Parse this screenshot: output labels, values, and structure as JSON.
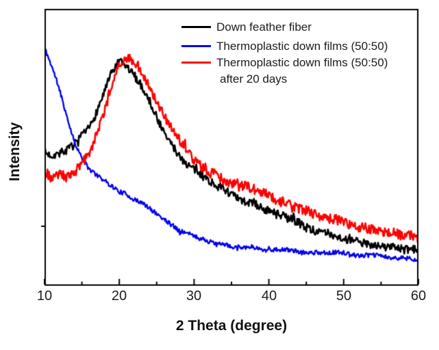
{
  "figure": {
    "background": "#ffffff",
    "x_axis_label": "2 Theta (degree)",
    "y_axis_label": "Intensity",
    "x_tick_labels": [
      "10",
      "20",
      "30",
      "40",
      "50",
      "60"
    ]
  },
  "legend": {
    "items": [
      {
        "label": "Down feather fiber",
        "color": "#000000"
      },
      {
        "label": "Thermoplastic down films (50:50)",
        "color": "#0000ee"
      },
      {
        "label": "Thermoplastic down films (50:50)",
        "label_line2": "after 20 days",
        "color": "#ff0000"
      }
    ]
  },
  "chart_data": {
    "type": "line",
    "title": "",
    "xlabel": "2 Theta (degree)",
    "ylabel": "Intensity",
    "xlim": [
      10,
      60
    ],
    "ylim": [
      0,
      100
    ],
    "x_ticks": [
      10,
      20,
      30,
      40,
      50,
      60
    ],
    "x_minor_ticks": [
      15,
      25,
      35,
      45,
      55
    ],
    "y_ticks": [],
    "y_units": "arbitrary units (no scale shown)",
    "grid": false,
    "legend_position": "inside top-right",
    "x_start": 10,
    "x_step": 1,
    "series": [
      {
        "name": "Down feather fiber",
        "color": "#000000",
        "noise_amp": 1.5,
        "values": [
          48,
          47,
          48,
          49,
          51,
          54,
          57,
          63,
          70,
          77,
          81,
          79,
          76,
          72,
          67,
          61,
          55,
          51,
          47,
          44,
          42,
          40,
          38,
          36,
          35,
          33,
          31,
          30,
          30,
          28,
          27,
          26,
          25,
          24,
          23,
          21,
          20,
          19,
          19,
          18,
          17,
          16,
          16,
          15,
          15,
          14,
          14,
          14,
          13,
          13,
          13
        ]
      },
      {
        "name": "Thermoplastic down films (50:50)",
        "color": "#0000ee",
        "noise_amp": 0.8,
        "values": [
          86,
          79,
          71,
          61,
          52,
          46,
          42,
          40,
          38,
          36,
          34,
          33,
          31,
          30,
          28,
          26,
          24,
          22,
          20,
          19,
          18,
          17,
          16,
          15,
          15,
          14,
          14,
          14,
          14,
          13,
          13,
          13,
          13,
          13,
          12,
          12,
          12,
          12,
          12,
          12,
          12,
          11,
          11,
          11,
          11,
          11,
          10,
          10,
          10,
          10,
          9
        ]
      },
      {
        "name": "Thermoplastic down films (50:50) after 20 days",
        "color": "#ff0000",
        "noise_amp": 1.8,
        "values": [
          40,
          39,
          40,
          40,
          41,
          44,
          48,
          55,
          63,
          73,
          80,
          83,
          80,
          77,
          72,
          67,
          61,
          57,
          53,
          49,
          45,
          43,
          41,
          40,
          38,
          37,
          36,
          36,
          35,
          34,
          33,
          31,
          30,
          29,
          28,
          27,
          26,
          25,
          24,
          24,
          23,
          22,
          21,
          21,
          20,
          20,
          19,
          19,
          18,
          18,
          17
        ]
      }
    ]
  }
}
